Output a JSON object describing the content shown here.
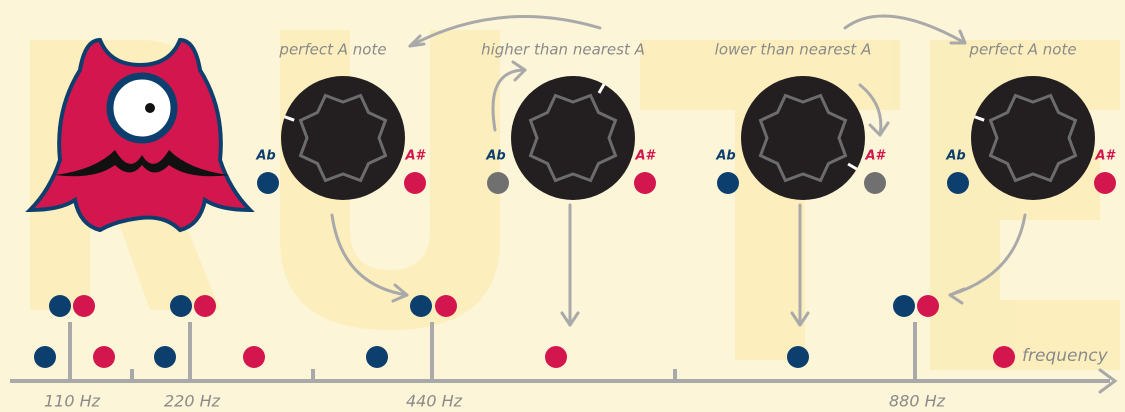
{
  "knobs": [
    {
      "caption": "perfect A note",
      "left": "Ab",
      "right": "A#"
    },
    {
      "caption": "higher than nearest A",
      "left": "Ab",
      "right": "A#"
    },
    {
      "caption": "lower than nearest A",
      "left": "Ab",
      "right": "A#"
    },
    {
      "caption": "perfect A note",
      "left": "Ab",
      "right": "A#"
    }
  ],
  "axis": {
    "labels": [
      "110 Hz",
      "220 Hz",
      "440 Hz",
      "880 Hz"
    ],
    "title": "frequency"
  }
}
